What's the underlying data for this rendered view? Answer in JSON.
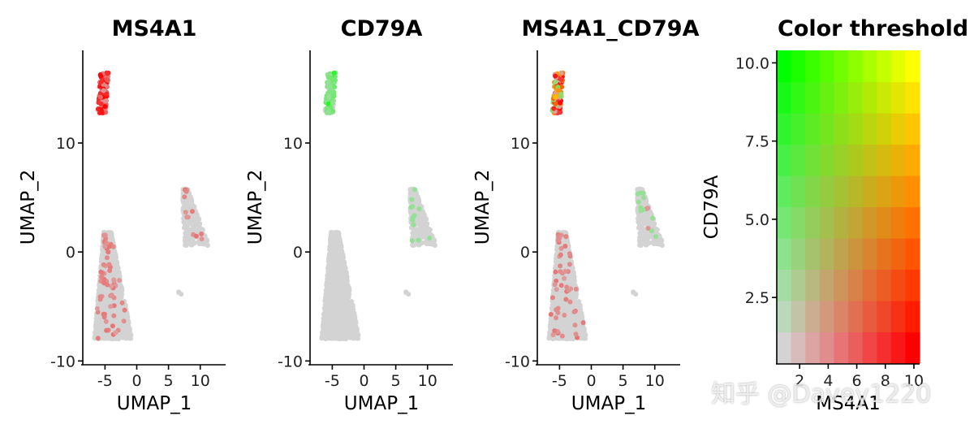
{
  "chart_data": [
    {
      "type": "scatter",
      "title": "MS4A1",
      "xlabel": "UMAP_1",
      "ylabel": "UMAP_2",
      "xlim": [
        -8.5,
        14
      ],
      "ylim": [
        -10.2,
        18.5
      ],
      "xticks": [
        "-5",
        "0",
        "5",
        "10"
      ],
      "yticks": [
        "-10",
        "0",
        "10"
      ],
      "feature": "MS4A1",
      "clusters": [
        {
          "name": "b_cells",
          "center": [
            -5.3,
            14.6
          ],
          "spread": [
            0.7,
            1.2
          ],
          "n": 140,
          "color_mix": "ms4a1"
        },
        {
          "name": "main_body",
          "center": [
            -4.0,
            -2.5
          ],
          "spread": [
            1.9,
            3.8
          ],
          "n": 1400,
          "color_mix": "low"
        },
        {
          "name": "right_group",
          "center": [
            8.8,
            2.6
          ],
          "spread": [
            1.3,
            2.2
          ],
          "n": 320,
          "color_mix": "low"
        },
        {
          "name": "singleton",
          "center": [
            6.8,
            -3.8
          ],
          "spread": [
            0.1,
            0.1
          ],
          "n": 3,
          "color_mix": "low"
        }
      ]
    },
    {
      "type": "scatter",
      "title": "CD79A",
      "xlabel": "UMAP_1",
      "ylabel": "UMAP_2",
      "xlim": [
        -8.5,
        14
      ],
      "ylim": [
        -10.2,
        18.5
      ],
      "xticks": [
        "-5",
        "0",
        "5",
        "10"
      ],
      "yticks": [
        "-10",
        "0",
        "10"
      ],
      "feature": "CD79A",
      "clusters": [
        {
          "name": "b_cells",
          "center": [
            -5.3,
            14.6
          ],
          "spread": [
            0.7,
            1.2
          ],
          "n": 140,
          "color_mix": "cd79a"
        },
        {
          "name": "main_body",
          "center": [
            -4.0,
            -2.5
          ],
          "spread": [
            1.9,
            3.8
          ],
          "n": 1400,
          "color_mix": "none"
        },
        {
          "name": "right_group",
          "center": [
            8.8,
            2.6
          ],
          "spread": [
            1.3,
            2.2
          ],
          "n": 320,
          "color_mix": "low_green"
        },
        {
          "name": "singleton",
          "center": [
            6.8,
            -3.8
          ],
          "spread": [
            0.1,
            0.1
          ],
          "n": 3,
          "color_mix": "none"
        }
      ]
    },
    {
      "type": "scatter",
      "title": "MS4A1_CD79A",
      "xlabel": "UMAP_1",
      "ylabel": "UMAP_2",
      "xlim": [
        -8.5,
        14
      ],
      "ylim": [
        -10.2,
        18.5
      ],
      "xticks": [
        "-5",
        "0",
        "5",
        "10"
      ],
      "yticks": [
        "-10",
        "0",
        "10"
      ],
      "feature": "MS4A1_CD79A",
      "clusters": [
        {
          "name": "b_cells",
          "center": [
            -5.3,
            14.6
          ],
          "spread": [
            0.7,
            1.2
          ],
          "n": 140,
          "color_mix": "blend"
        },
        {
          "name": "main_body",
          "center": [
            -4.0,
            -2.5
          ],
          "spread": [
            1.9,
            3.8
          ],
          "n": 1400,
          "color_mix": "low"
        },
        {
          "name": "right_group",
          "center": [
            8.8,
            2.6
          ],
          "spread": [
            1.3,
            2.2
          ],
          "n": 320,
          "color_mix": "low_mixed"
        },
        {
          "name": "singleton",
          "center": [
            6.8,
            -3.8
          ],
          "spread": [
            0.1,
            0.1
          ],
          "n": 3,
          "color_mix": "low"
        }
      ]
    },
    {
      "type": "heatmap",
      "title": "Color threshold",
      "xlabel": "MS4A1",
      "ylabel": "CD79A",
      "xlim": [
        0.4,
        10.4
      ],
      "ylim": [
        0.4,
        10.4
      ],
      "xticks": [
        "2",
        "4",
        "6",
        "8",
        "10"
      ],
      "ytick_labels": [
        "2.5",
        "5.0",
        "7.5",
        "10.0"
      ],
      "ytick_values": [
        2.5,
        5.0,
        7.5,
        10.0
      ],
      "grid_size": 10,
      "low_color": "#d3d3d3",
      "x_color": "#ff0000",
      "y_color": "#00ff00",
      "high_color": "#ffff00"
    }
  ],
  "colors": {
    "background": "#ffffff",
    "dot_default": "#d3d3d3",
    "ms4a1": "#ff0000",
    "cd79a": "#00ff00"
  },
  "watermark": "知乎 @Davey1220"
}
